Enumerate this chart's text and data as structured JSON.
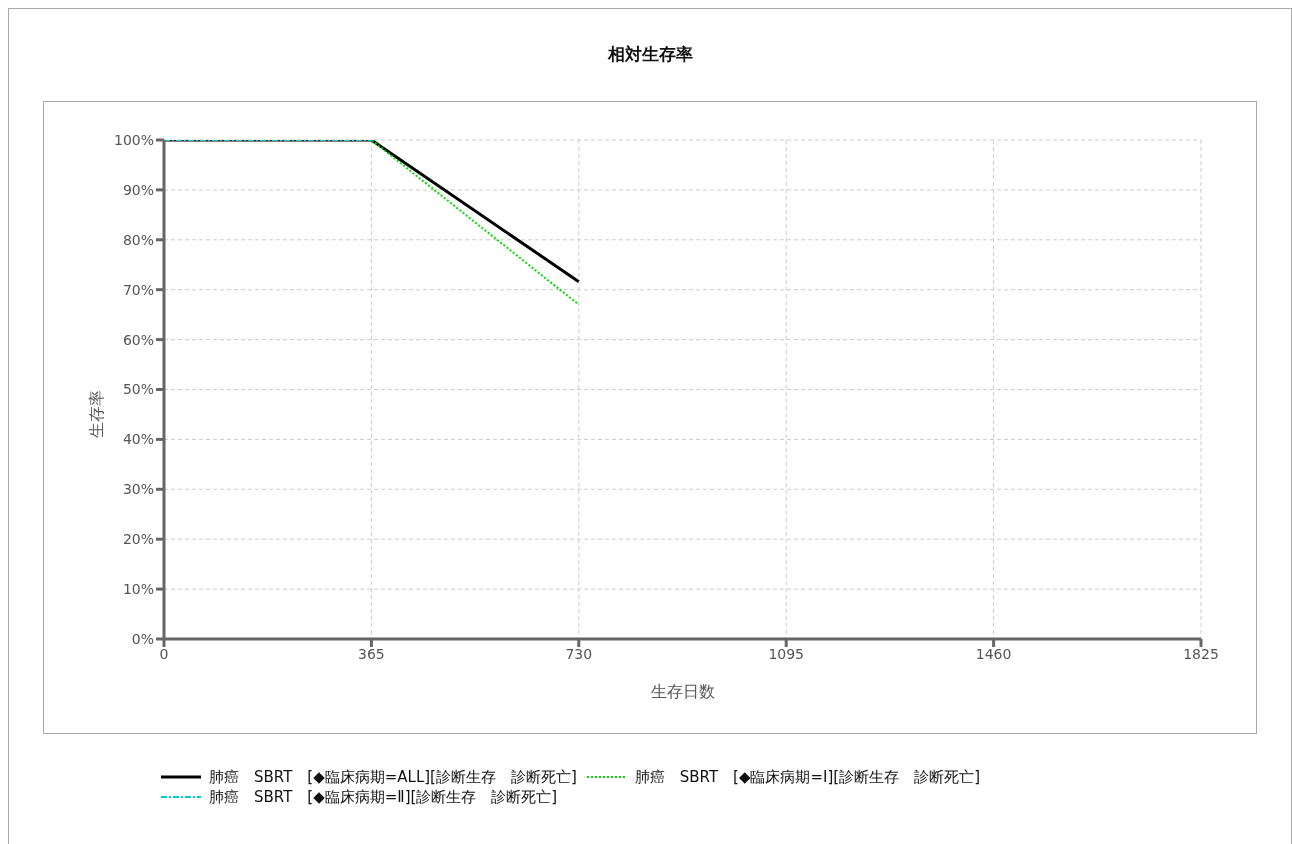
{
  "chart_data": {
    "type": "line",
    "title": "相対生存率",
    "xlabel": "生存日数",
    "ylabel": "生存率",
    "xlim": [
      0,
      1825
    ],
    "xticks": [
      0,
      365,
      730,
      1095,
      1460,
      1825
    ],
    "ylim": [
      0,
      100
    ],
    "yticks": [
      {
        "value": 0,
        "label": "0%"
      },
      {
        "value": 10,
        "label": "10%"
      },
      {
        "value": 20,
        "label": "20%"
      },
      {
        "value": 30,
        "label": "30%"
      },
      {
        "value": 40,
        "label": "40%"
      },
      {
        "value": 50,
        "label": "50%"
      },
      {
        "value": 60,
        "label": "60%"
      },
      {
        "value": 70,
        "label": "70%"
      },
      {
        "value": 80,
        "label": "80%"
      },
      {
        "value": 90,
        "label": "90%"
      },
      {
        "value": 100,
        "label": "100%"
      }
    ],
    "grid": true,
    "legend": "bottom",
    "marker": "none",
    "series": [
      {
        "name": "肺癌　SBRT　[◆臨床病期=ALL][診断生存　診断死亡]",
        "color": "#000000",
        "line_style": "solid",
        "x": [
          0,
          365,
          730
        ],
        "values": [
          100,
          100,
          71.6
        ]
      },
      {
        "name": "肺癌　SBRT　[◆臨床病期=Ⅰ][診断生存　診断死亡]",
        "color": "#00dd00",
        "line_style": "dotted",
        "x": [
          0,
          365,
          730
        ],
        "values": [
          100,
          100,
          67
        ]
      },
      {
        "name": "肺癌　SBRT　[◆臨床病期=Ⅱ][診断生存　診断死亡]",
        "color": "#00cccc",
        "line_style": "dashed",
        "x": [
          0,
          365
        ],
        "values": [
          100,
          100
        ]
      }
    ]
  }
}
